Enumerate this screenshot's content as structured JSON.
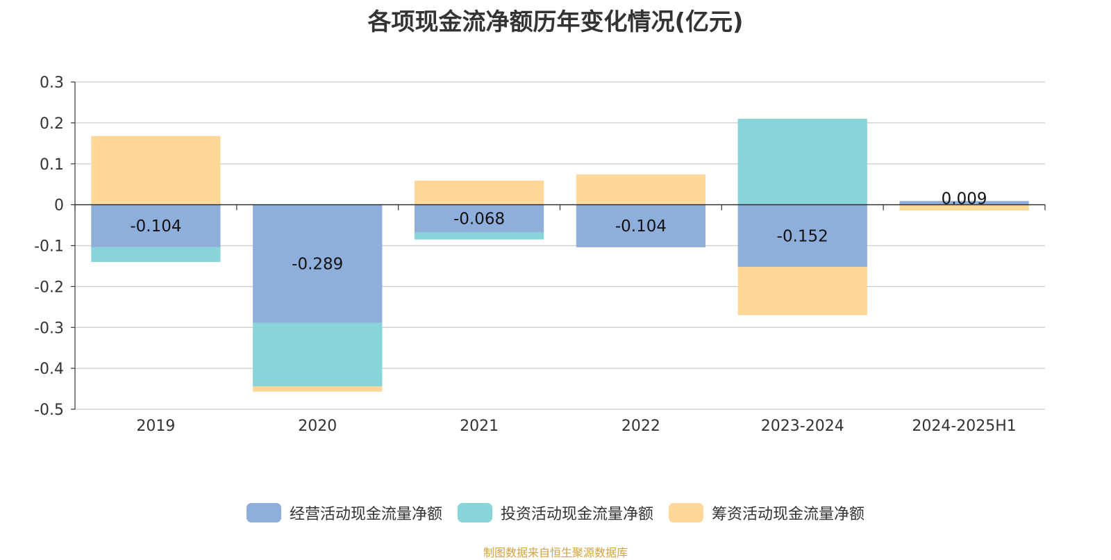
{
  "chart_data": {
    "type": "bar",
    "stacked": true,
    "title": "各项现金流净额历年变化情况(亿元)",
    "xlabel": "",
    "ylabel": "",
    "categories": [
      "2019",
      "2020",
      "2021",
      "2022",
      "2023-2024",
      "2024-2025H1"
    ],
    "ylim": [
      -0.5,
      0.3
    ],
    "yticks": [
      "0.3",
      "0.2",
      "0.1",
      "0",
      "-0.1",
      "-0.2",
      "-0.3",
      "-0.4",
      "-0.5"
    ],
    "ytick_values": [
      0.3,
      0.2,
      0.1,
      0,
      -0.1,
      -0.2,
      -0.3,
      -0.4,
      -0.5
    ],
    "grid": true,
    "legend_position": "bottom",
    "series": [
      {
        "name": "经营活动现金流量净额",
        "color": "#8eaedb",
        "values": [
          -0.104,
          -0.289,
          -0.068,
          -0.104,
          -0.152,
          0.009
        ],
        "labels": [
          "-0.104",
          "-0.289",
          "-0.068",
          "-0.104",
          "-0.152",
          "0.009"
        ]
      },
      {
        "name": "投资活动现金流量净额",
        "color": "#88d5d9",
        "values": [
          -0.036,
          -0.155,
          -0.017,
          0,
          0.21,
          0
        ]
      },
      {
        "name": "筹资活动现金流量净额",
        "color": "#fed899",
        "values": [
          0.168,
          -0.013,
          0.059,
          0.074,
          -0.118,
          -0.014
        ]
      }
    ]
  },
  "source_note": "制图数据来自恒生聚源数据库"
}
